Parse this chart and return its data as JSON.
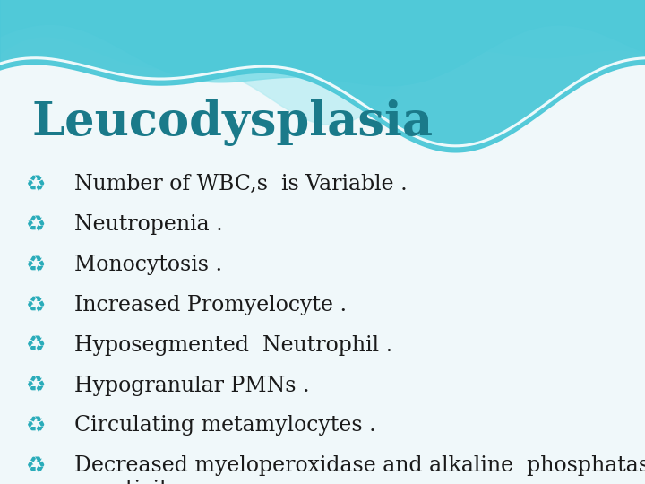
{
  "title": "Leucodysplasia",
  "title_color": "#1a7a8a",
  "title_fontsize": 38,
  "bullet_color": "#2aacba",
  "text_color": "#1a1a1a",
  "text_fontsize": 17,
  "bg_color": "#f0f8fa",
  "bullet_items": [
    "Number of WBC,s  is Variable .",
    "Neutropenia .",
    "Monocytosis .",
    "Increased Promyelocyte .",
    "Hyposegmented  Neutrophil .",
    "Hypogranular PMNs .",
    "Circulating metamylocytes .",
    "Decreased myeloperoxidase and alkaline  phosphatase\n    activity"
  ],
  "wave_color_1": "#4dc8d8",
  "wave_color_2": "#80dde8",
  "wave_color_3": "#b8ecf2"
}
